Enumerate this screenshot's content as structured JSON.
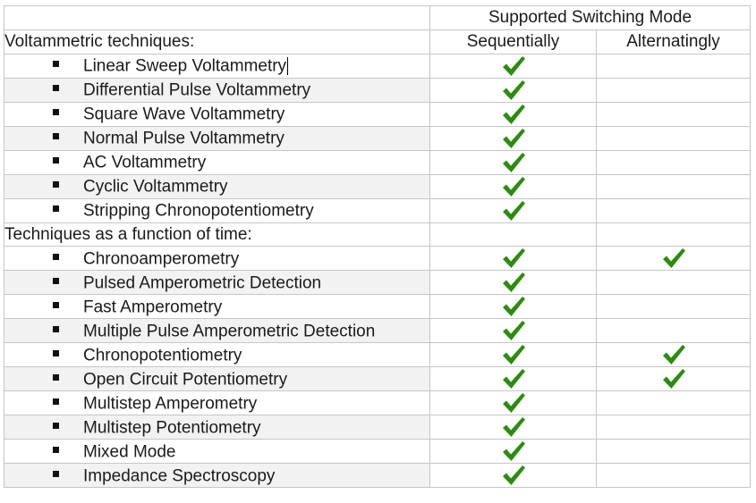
{
  "header": {
    "group_title": "Supported Switching Mode",
    "col_sequential": "Sequentially",
    "col_alternating": "Alternatingly"
  },
  "colors": {
    "check": "#2e8b12",
    "border": "#c6c6c6",
    "row_shade": "#f2f2f2"
  },
  "sections": [
    {
      "title": "Voltammetric techniques:",
      "items": [
        {
          "label": "Linear Sweep Voltammetry",
          "sequential": true,
          "alternating": false,
          "shaded": false
        },
        {
          "label": "Differential Pulse Voltammetry",
          "sequential": true,
          "alternating": false,
          "shaded": true
        },
        {
          "label": "Square Wave Voltammetry",
          "sequential": true,
          "alternating": false,
          "shaded": false
        },
        {
          "label": "Normal Pulse Voltammetry",
          "sequential": true,
          "alternating": false,
          "shaded": true
        },
        {
          "label": "AC Voltammetry",
          "sequential": true,
          "alternating": false,
          "shaded": false
        },
        {
          "label": "Cyclic Voltammetry",
          "sequential": true,
          "alternating": false,
          "shaded": true
        },
        {
          "label": "Stripping Chronopotentiometry",
          "sequential": true,
          "alternating": false,
          "shaded": false
        }
      ]
    },
    {
      "title": "Techniques as a function of time:",
      "items": [
        {
          "label": "Chronoamperometry",
          "sequential": true,
          "alternating": true,
          "shaded": false
        },
        {
          "label": "Pulsed Amperometric Detection",
          "sequential": true,
          "alternating": false,
          "shaded": true
        },
        {
          "label": "Fast Amperometry",
          "sequential": true,
          "alternating": false,
          "shaded": false
        },
        {
          "label": "Multiple Pulse Amperometric Detection",
          "sequential": true,
          "alternating": false,
          "shaded": true
        },
        {
          "label": "Chronopotentiometry",
          "sequential": true,
          "alternating": true,
          "shaded": false
        },
        {
          "label": "Open Circuit Potentiometry",
          "sequential": true,
          "alternating": true,
          "shaded": true
        },
        {
          "label": "Multistep Amperometry",
          "sequential": true,
          "alternating": false,
          "shaded": false
        },
        {
          "label": "Multistep Potentiometry",
          "sequential": true,
          "alternating": false,
          "shaded": true
        },
        {
          "label": "Mixed Mode",
          "sequential": true,
          "alternating": false,
          "shaded": false
        },
        {
          "label": "Impedance Spectroscopy",
          "sequential": true,
          "alternating": false,
          "shaded": true
        }
      ]
    }
  ]
}
